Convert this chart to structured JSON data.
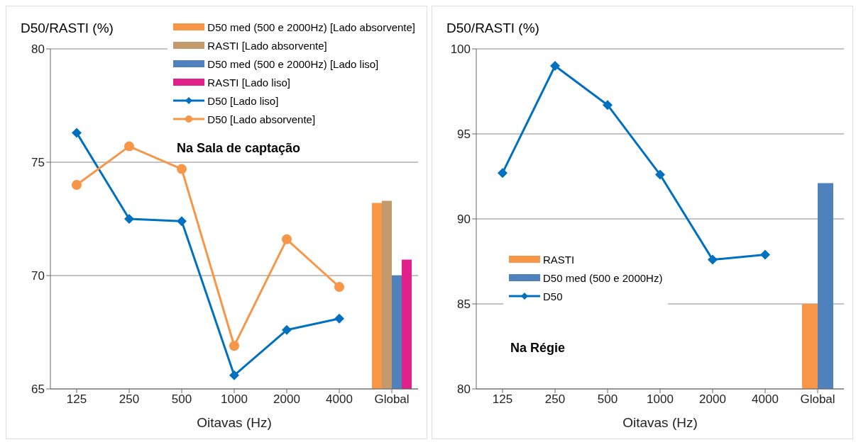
{
  "chart_data": [
    {
      "type": "line",
      "ylabel": "D50/RASTI (%)",
      "xlabel": "Oitavas (Hz)",
      "categories": [
        "125",
        "250",
        "500",
        "1000",
        "2000",
        "4000",
        "Global"
      ],
      "ylim": [
        65,
        80
      ],
      "yticks": [
        65,
        70,
        75,
        80
      ],
      "grid": "y",
      "legend": "top right",
      "annotations": [
        "Na Sala de captação"
      ],
      "series": [
        {
          "type": "bar",
          "name": "D50 med (500 e 2000Hz) [Lado absorvente]",
          "color": "#f79646",
          "values": [
            null,
            null,
            null,
            null,
            null,
            null,
            73.2
          ]
        },
        {
          "type": "bar",
          "name": "RASTI [Lado absorvente]",
          "color": "#c49a6c",
          "values": [
            null,
            null,
            null,
            null,
            null,
            null,
            73.3
          ]
        },
        {
          "type": "bar",
          "name": "D50 med (500 e 2000Hz) [Lado liso]",
          "color": "#4f81bd",
          "values": [
            null,
            null,
            null,
            null,
            null,
            null,
            70.0
          ]
        },
        {
          "type": "bar",
          "name": "RASTI [Lado liso]",
          "color": "#e0218a",
          "values": [
            null,
            null,
            null,
            null,
            null,
            null,
            70.7
          ]
        },
        {
          "marker": "diamond",
          "name": "D50 [Lado liso]",
          "color": "#0070c0",
          "values": [
            76.3,
            72.5,
            72.4,
            65.6,
            67.6,
            68.1,
            null
          ]
        },
        {
          "marker": "circle",
          "name": "D50 [Lado absorvente]",
          "color": "#f79646",
          "values": [
            74.0,
            75.7,
            74.7,
            66.9,
            71.6,
            69.5,
            null
          ]
        }
      ]
    },
    {
      "type": "line",
      "ylabel": "D50/RASTI (%)",
      "xlabel": "Oitavas (Hz)",
      "categories": [
        "125",
        "250",
        "500",
        "1000",
        "2000",
        "4000",
        "Global"
      ],
      "ylim": [
        80,
        100
      ],
      "yticks": [
        80,
        85,
        90,
        95,
        100
      ],
      "grid": "y",
      "legend": "left",
      "annotations": [
        "Na Régie"
      ],
      "series": [
        {
          "type": "bar",
          "name": "RASTI",
          "color": "#f79646",
          "values": [
            null,
            null,
            null,
            null,
            null,
            null,
            85.0
          ]
        },
        {
          "type": "bar",
          "name": "D50 med (500 e 2000Hz)",
          "color": "#4f81bd",
          "values": [
            null,
            null,
            null,
            null,
            null,
            null,
            92.1
          ]
        },
        {
          "marker": "diamond",
          "name": "D50",
          "color": "#0070c0",
          "values": [
            92.7,
            99.0,
            96.7,
            92.6,
            87.6,
            87.9,
            null
          ]
        }
      ]
    }
  ]
}
